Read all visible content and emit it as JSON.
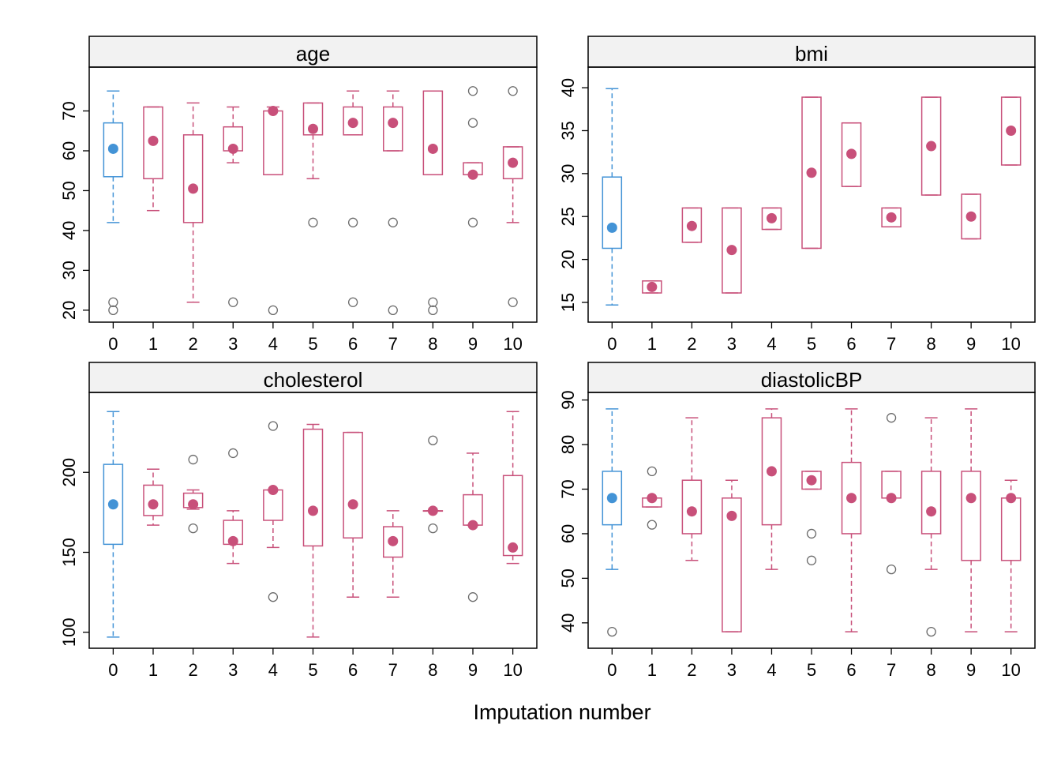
{
  "colors": {
    "observed": "#4393d6",
    "imputed": "#c8507a",
    "outlier": "#6b6b6b",
    "strip_bg": "#f2f2f2",
    "frame": "#000000"
  },
  "chart_data": {
    "type": "box",
    "xlabel": "Imputation number",
    "x": [
      0,
      1,
      2,
      3,
      4,
      5,
      6,
      7,
      8,
      9,
      10
    ],
    "panels": [
      {
        "title": "age",
        "ylim": [
          17,
          81
        ],
        "yticks": [
          20,
          30,
          40,
          50,
          60,
          70
        ],
        "boxes": [
          {
            "imp": 0,
            "wlo": 42,
            "q1": 53.5,
            "med": 60.5,
            "q3": 67,
            "whi": 75,
            "out": [
              20,
              22
            ]
          },
          {
            "imp": 1,
            "wlo": 45,
            "q1": 53,
            "med": 62.5,
            "q3": 71,
            "whi": 71,
            "out": []
          },
          {
            "imp": 2,
            "wlo": 22,
            "q1": 42,
            "med": 50.5,
            "q3": 64,
            "whi": 72,
            "out": []
          },
          {
            "imp": 3,
            "wlo": 57,
            "q1": 60,
            "med": 60.5,
            "q3": 66,
            "whi": 71,
            "out": [
              22
            ]
          },
          {
            "imp": 4,
            "wlo": 54,
            "q1": 54,
            "med": 70,
            "q3": 70,
            "whi": 71,
            "out": [
              20
            ]
          },
          {
            "imp": 5,
            "wlo": 53,
            "q1": 64,
            "med": 65.5,
            "q3": 72,
            "whi": 72,
            "out": [
              42
            ]
          },
          {
            "imp": 6,
            "wlo": 64,
            "q1": 64,
            "med": 67,
            "q3": 71,
            "whi": 75,
            "out": [
              42,
              22
            ]
          },
          {
            "imp": 7,
            "wlo": 60,
            "q1": 60,
            "med": 67,
            "q3": 71,
            "whi": 75,
            "out": [
              42,
              20
            ]
          },
          {
            "imp": 8,
            "wlo": 54,
            "q1": 54,
            "med": 60.5,
            "q3": 75,
            "whi": 75,
            "out": [
              22,
              20
            ]
          },
          {
            "imp": 9,
            "wlo": 54,
            "q1": 54,
            "med": 54,
            "q3": 57,
            "whi": 57,
            "out": [
              75,
              67,
              42
            ]
          },
          {
            "imp": 10,
            "wlo": 42,
            "q1": 53,
            "med": 57,
            "q3": 61,
            "whi": 61,
            "out": [
              75,
              22
            ]
          }
        ]
      },
      {
        "title": "bmi",
        "ylim": [
          12.7,
          42.4
        ],
        "yticks": [
          15,
          20,
          25,
          30,
          35,
          40
        ],
        "boxes": [
          {
            "imp": 0,
            "wlo": 14.7,
            "q1": 21.3,
            "med": 23.7,
            "q3": 29.6,
            "whi": 39.9,
            "out": []
          },
          {
            "imp": 1,
            "wlo": 16.1,
            "q1": 16.1,
            "med": 16.8,
            "q3": 17.5,
            "whi": 17.5,
            "out": []
          },
          {
            "imp": 2,
            "wlo": 22,
            "q1": 22,
            "med": 23.9,
            "q3": 26,
            "whi": 26,
            "out": []
          },
          {
            "imp": 3,
            "wlo": 16.1,
            "q1": 16.1,
            "med": 21.1,
            "q3": 26,
            "whi": 26,
            "out": []
          },
          {
            "imp": 4,
            "wlo": 23.5,
            "q1": 23.5,
            "med": 24.8,
            "q3": 26,
            "whi": 26,
            "out": []
          },
          {
            "imp": 5,
            "wlo": 21.3,
            "q1": 21.3,
            "med": 30.1,
            "q3": 38.9,
            "whi": 38.9,
            "out": []
          },
          {
            "imp": 6,
            "wlo": 28.5,
            "q1": 28.5,
            "med": 32.3,
            "q3": 35.9,
            "whi": 35.9,
            "out": []
          },
          {
            "imp": 7,
            "wlo": 23.8,
            "q1": 23.8,
            "med": 24.9,
            "q3": 26,
            "whi": 26,
            "out": []
          },
          {
            "imp": 8,
            "wlo": 27.5,
            "q1": 27.5,
            "med": 33.2,
            "q3": 38.9,
            "whi": 38.9,
            "out": []
          },
          {
            "imp": 9,
            "wlo": 22.4,
            "q1": 22.4,
            "med": 25,
            "q3": 27.6,
            "whi": 27.6,
            "out": []
          },
          {
            "imp": 10,
            "wlo": 31,
            "q1": 31,
            "med": 35,
            "q3": 38.9,
            "whi": 38.9,
            "out": []
          }
        ]
      },
      {
        "title": "cholesterol",
        "ylim": [
          90,
          250
        ],
        "yticks": [
          100,
          150,
          200
        ],
        "boxes": [
          {
            "imp": 0,
            "wlo": 97,
            "q1": 155,
            "med": 180,
            "q3": 205,
            "whi": 238,
            "out": []
          },
          {
            "imp": 1,
            "wlo": 167,
            "q1": 173,
            "med": 180,
            "q3": 192,
            "whi": 202,
            "out": []
          },
          {
            "imp": 2,
            "wlo": 177,
            "q1": 178,
            "med": 180,
            "q3": 187,
            "whi": 189,
            "out": [
              165,
              208
            ]
          },
          {
            "imp": 3,
            "wlo": 143,
            "q1": 155,
            "med": 157,
            "q3": 170,
            "whi": 176,
            "out": [
              212
            ]
          },
          {
            "imp": 4,
            "wlo": 153,
            "q1": 170,
            "med": 189,
            "q3": 189,
            "whi": 189,
            "out": [
              229,
              122
            ]
          },
          {
            "imp": 5,
            "wlo": 97,
            "q1": 154,
            "med": 176,
            "q3": 227,
            "whi": 230,
            "out": []
          },
          {
            "imp": 6,
            "wlo": 122,
            "q1": 159,
            "med": 180,
            "q3": 225,
            "whi": 225,
            "out": []
          },
          {
            "imp": 7,
            "wlo": 122,
            "q1": 147,
            "med": 157,
            "q3": 166,
            "whi": 176,
            "out": []
          },
          {
            "imp": 8,
            "wlo": 176,
            "q1": 176,
            "med": 176,
            "q3": 176,
            "whi": 176,
            "out": [
              220,
              165
            ]
          },
          {
            "imp": 9,
            "wlo": 167,
            "q1": 167,
            "med": 167,
            "q3": 186,
            "whi": 212,
            "out": [
              122
            ]
          },
          {
            "imp": 10,
            "wlo": 143,
            "q1": 148,
            "med": 153,
            "q3": 198,
            "whi": 238,
            "out": []
          }
        ]
      },
      {
        "title": "diastolicBP",
        "ylim": [
          34.3,
          91.7
        ],
        "yticks": [
          40,
          50,
          60,
          70,
          80,
          90
        ],
        "boxes": [
          {
            "imp": 0,
            "wlo": 52,
            "q1": 62,
            "med": 68,
            "q3": 74,
            "whi": 88,
            "out": [
              38
            ]
          },
          {
            "imp": 1,
            "wlo": 66,
            "q1": 66,
            "med": 68,
            "q3": 68,
            "whi": 68,
            "out": [
              74,
              62
            ]
          },
          {
            "imp": 2,
            "wlo": 54,
            "q1": 60,
            "med": 65,
            "q3": 72,
            "whi": 86,
            "out": []
          },
          {
            "imp": 3,
            "wlo": 38,
            "q1": 38,
            "med": 64,
            "q3": 68,
            "whi": 72,
            "out": []
          },
          {
            "imp": 4,
            "wlo": 52,
            "q1": 62,
            "med": 74,
            "q3": 86,
            "whi": 88,
            "out": []
          },
          {
            "imp": 5,
            "wlo": 70,
            "q1": 70,
            "med": 72,
            "q3": 74,
            "whi": 74,
            "out": [
              60,
              54
            ]
          },
          {
            "imp": 6,
            "wlo": 38,
            "q1": 60,
            "med": 68,
            "q3": 76,
            "whi": 88,
            "out": []
          },
          {
            "imp": 7,
            "wlo": 68,
            "q1": 68,
            "med": 68,
            "q3": 74,
            "whi": 74,
            "out": [
              86,
              52
            ]
          },
          {
            "imp": 8,
            "wlo": 52,
            "q1": 60,
            "med": 65,
            "q3": 74,
            "whi": 86,
            "out": [
              38
            ]
          },
          {
            "imp": 9,
            "wlo": 38,
            "q1": 54,
            "med": 68,
            "q3": 74,
            "whi": 88,
            "out": []
          },
          {
            "imp": 10,
            "wlo": 38,
            "q1": 54,
            "med": 68,
            "q3": 68,
            "whi": 72,
            "out": []
          }
        ]
      }
    ]
  }
}
